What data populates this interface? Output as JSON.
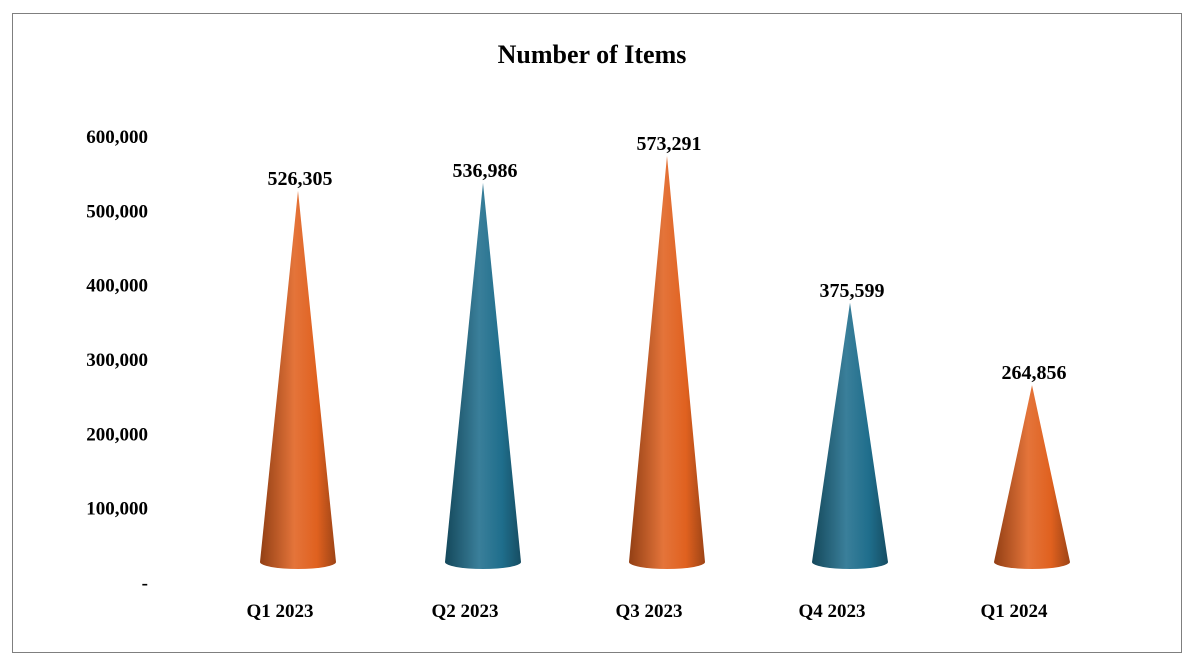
{
  "chart_data": {
    "type": "bar",
    "style": "3d-cone",
    "title": "Number of Items",
    "xlabel": "",
    "ylabel": "",
    "categories": [
      "Q1 2023",
      "Q2 2023",
      "Q3 2023",
      "Q4 2023",
      "Q1 2024"
    ],
    "values": [
      526305,
      536986,
      573291,
      375599,
      264856
    ],
    "value_labels": [
      "526,305",
      "536,986",
      "573,291",
      "375,599",
      "264,856"
    ],
    "ylim": [
      0,
      600000
    ],
    "y_ticks": [
      0,
      100000,
      200000,
      300000,
      400000,
      500000,
      600000
    ],
    "y_tick_labels": [
      "-",
      "100,000",
      "200,000",
      "300,000",
      "400,000",
      "500,000",
      "600,000"
    ],
    "grid": false,
    "legend": "none",
    "colors": [
      "#e0611f",
      "#1f6e8c",
      "#e0611f",
      "#1f6e8c",
      "#e0611f"
    ]
  }
}
